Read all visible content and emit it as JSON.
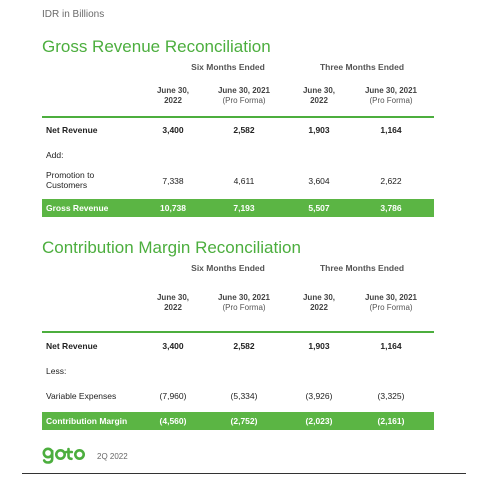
{
  "unit_label": "IDR in Billions",
  "period": "2Q 2022",
  "brand": {
    "name": "goto",
    "color": "#4cae3e"
  },
  "gross": {
    "title": "Gross Revenue Reconciliation",
    "groups": [
      "Six Months Ended",
      "Three Months Ended"
    ],
    "columns": [
      {
        "date": "June 30,",
        "year": "2022",
        "note": ""
      },
      {
        "date": "June 30, 2021",
        "year": "",
        "note": "(Pro Forma)"
      },
      {
        "date": "June 30,",
        "year": "2022",
        "note": ""
      },
      {
        "date": "June 30, 2021",
        "year": "",
        "note": "(Pro Forma)"
      }
    ],
    "rows": {
      "net_revenue": {
        "label": "Net Revenue",
        "values": [
          "3,400",
          "2,582",
          "1,903",
          "1,164"
        ]
      },
      "add": {
        "label": "Add:"
      },
      "promotion": {
        "label_line1": "Promotion to",
        "label_line2": "Customers",
        "values": [
          "7,338",
          "4,611",
          "3,604",
          "2,622"
        ]
      },
      "total": {
        "label": "Gross Revenue",
        "values": [
          "10,738",
          "7,193",
          "5,507",
          "3,786"
        ]
      }
    }
  },
  "contribution": {
    "title": "Contribution Margin Reconciliation",
    "groups": [
      "Six Months Ended",
      "Three Months Ended"
    ],
    "columns": [
      {
        "date": "June 30,",
        "year": "2022",
        "note": ""
      },
      {
        "date": "June 30, 2021",
        "year": "",
        "note": "(Pro Forma)"
      },
      {
        "date": "June 30,",
        "year": "2022",
        "note": ""
      },
      {
        "date": "June 30, 2021",
        "year": "",
        "note": "(Pro Forma)"
      }
    ],
    "rows": {
      "net_revenue": {
        "label": "Net Revenue",
        "values": [
          "3,400",
          "2,582",
          "1,903",
          "1,164"
        ]
      },
      "less": {
        "label": "Less:"
      },
      "variable": {
        "label": "Variable Expenses",
        "values": [
          "(7,960)",
          "(5,334)",
          "(3,926)",
          "(3,325)"
        ]
      },
      "total": {
        "label": "Contribution Margin",
        "values": [
          "(4,560)",
          "(2,752)",
          "(2,023)",
          "(2,161)"
        ]
      }
    }
  }
}
